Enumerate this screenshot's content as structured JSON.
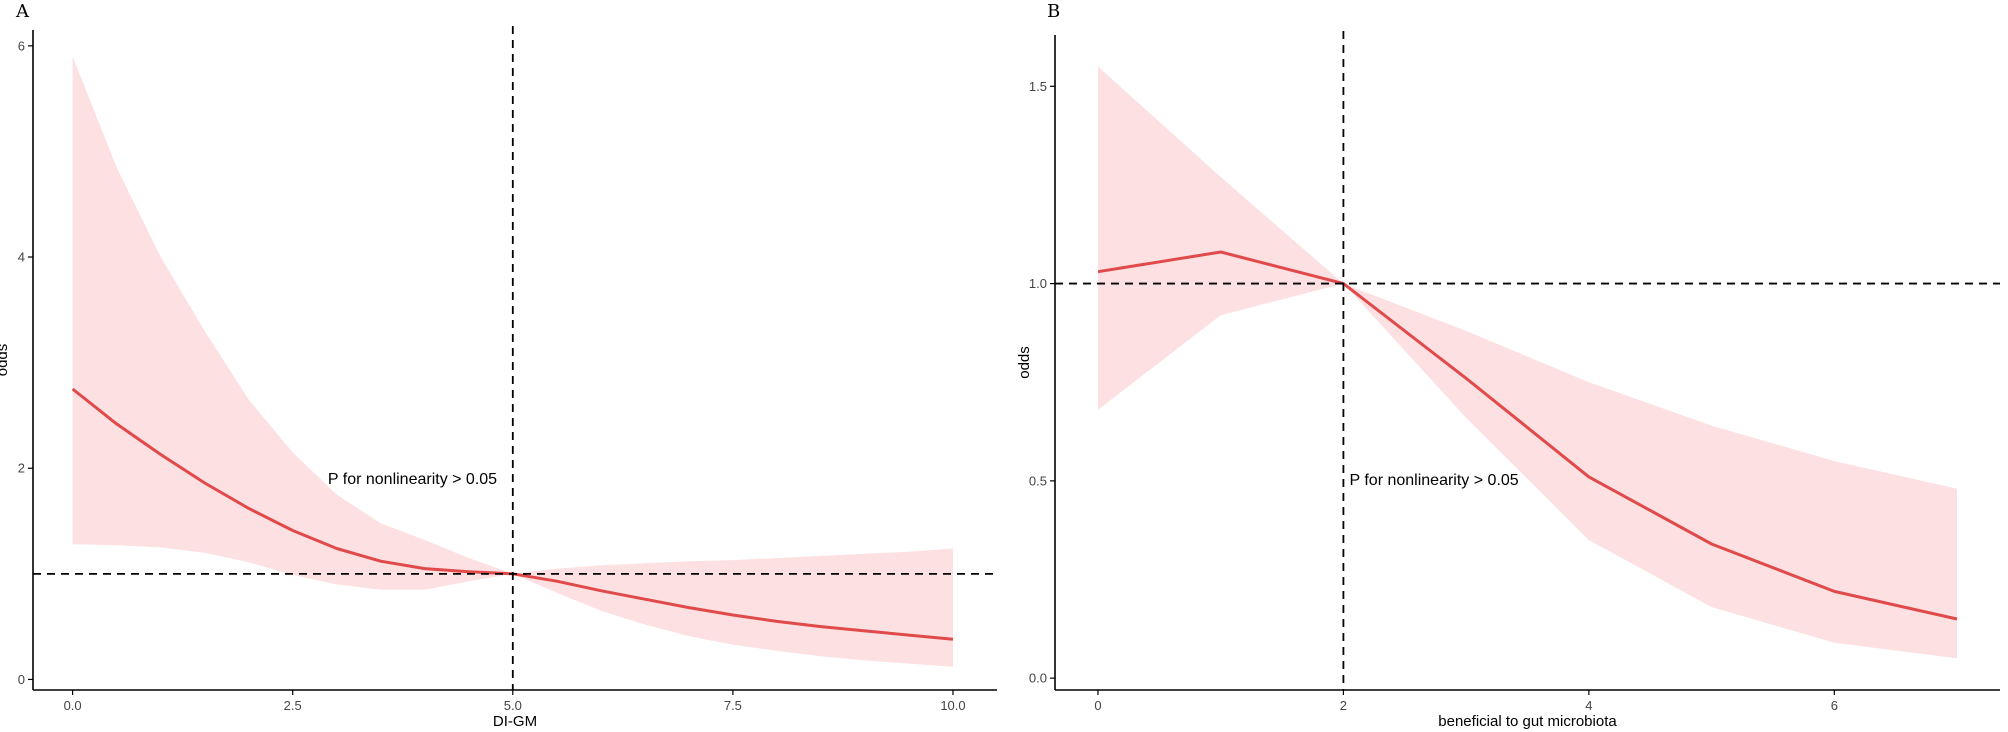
{
  "colors": {
    "band": "#fde0e2",
    "line": "#e04a4a"
  },
  "chart_data": [
    {
      "type": "line",
      "panel_label": "A",
      "title": "",
      "xlabel": "DI-GM",
      "ylabel": "odds",
      "xlim": [
        -0.45,
        10.5
      ],
      "ylim": [
        -0.1,
        6.15
      ],
      "xticks": [
        0,
        2.5,
        5,
        7.5,
        10
      ],
      "xtick_labels": [
        "0.0",
        "2.5",
        "5.0",
        "7.5",
        "10.0"
      ],
      "yticks": [
        0,
        2,
        4,
        6
      ],
      "ytick_labels": [
        "0",
        "2",
        "4",
        "6"
      ],
      "grid": false,
      "legend": "none",
      "ref_x": 5,
      "ref_y": 1,
      "annotation": {
        "text": "P for nonlinearity > 0.05",
        "x": 2.9,
        "y": 1.85
      },
      "x": [
        0,
        0.5,
        1,
        1.5,
        2,
        2.5,
        3,
        3.5,
        4,
        4.5,
        5,
        5.5,
        6,
        6.5,
        7,
        7.5,
        8,
        8.5,
        9,
        9.5,
        10
      ],
      "y": [
        2.75,
        2.42,
        2.13,
        1.86,
        1.62,
        1.41,
        1.24,
        1.12,
        1.05,
        1.02,
        1.0,
        0.93,
        0.84,
        0.76,
        0.68,
        0.61,
        0.55,
        0.5,
        0.46,
        0.42,
        0.38
      ],
      "lower": [
        1.28,
        1.27,
        1.25,
        1.2,
        1.11,
        0.99,
        0.9,
        0.85,
        0.85,
        0.93,
        1.0,
        0.82,
        0.65,
        0.52,
        0.41,
        0.33,
        0.27,
        0.22,
        0.18,
        0.15,
        0.12
      ],
      "upper": [
        5.9,
        4.85,
        4.0,
        3.3,
        2.65,
        2.15,
        1.75,
        1.48,
        1.32,
        1.15,
        1.0,
        1.05,
        1.08,
        1.1,
        1.12,
        1.13,
        1.15,
        1.17,
        1.19,
        1.21,
        1.24
      ]
    },
    {
      "type": "line",
      "panel_label": "B",
      "title": "",
      "xlabel": "beneficial to gut microbiota",
      "ylabel": "odds",
      "xlim": [
        -0.35,
        7.35
      ],
      "ylim": [
        -0.03,
        1.63
      ],
      "xticks": [
        0,
        2,
        4,
        6
      ],
      "xtick_labels": [
        "0",
        "2",
        "4",
        "6"
      ],
      "yticks": [
        0,
        0.5,
        1,
        1.5
      ],
      "ytick_labels": [
        "0.0",
        "0.5",
        "1.0",
        "1.5"
      ],
      "grid": false,
      "legend": "none",
      "ref_x": 2,
      "ref_y": 1,
      "annotation": {
        "text": "P for nonlinearity > 0.05",
        "x": 2.05,
        "y": 0.49
      },
      "x": [
        0,
        1,
        2,
        3,
        4,
        5,
        6,
        7
      ],
      "y": [
        1.03,
        1.08,
        1.0,
        0.76,
        0.51,
        0.34,
        0.22,
        0.15
      ],
      "lower": [
        0.68,
        0.92,
        1.0,
        0.66,
        0.35,
        0.18,
        0.09,
        0.05
      ],
      "upper": [
        1.55,
        1.27,
        1.0,
        0.88,
        0.75,
        0.64,
        0.55,
        0.48
      ]
    }
  ]
}
